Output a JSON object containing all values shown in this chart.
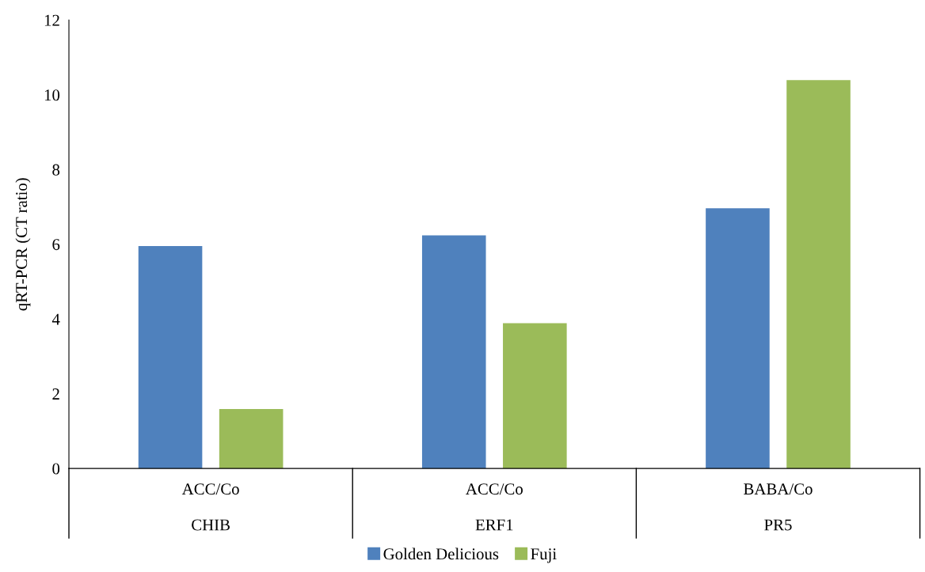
{
  "chart_data": {
    "type": "bar",
    "ylabel": "qRT-PCR (CT ratio)",
    "categories": [
      "ACC/Co\nCHIB",
      "ACC/Co\nERF1",
      "BABA/Co\nPR5"
    ],
    "series": [
      {
        "name": "Golden Delicious",
        "color": "#4f81bd",
        "values": [
          5.95,
          6.24,
          6.96
        ]
      },
      {
        "name": "Fuji",
        "color": "#9bbb59",
        "values": [
          1.59,
          3.89,
          10.39
        ]
      }
    ],
    "ylim": [
      0,
      12
    ],
    "yticks": [
      0,
      2,
      4,
      6,
      8,
      10,
      12
    ],
    "grid": false,
    "legend": "bottom"
  }
}
